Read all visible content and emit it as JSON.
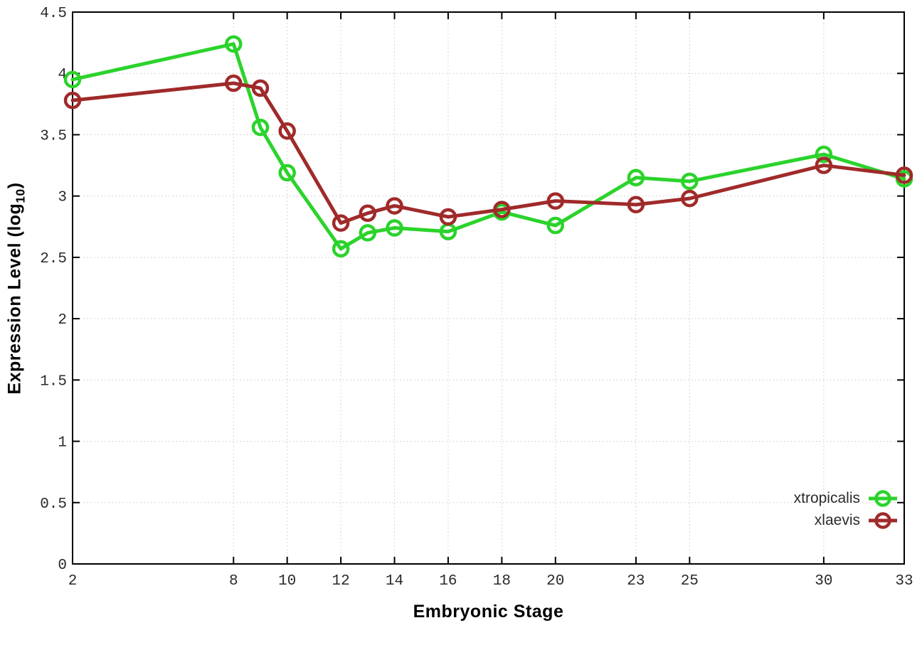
{
  "figure": {
    "xlabel": "Embryonic Stage",
    "ylabel_prefix": "Expression Level (log",
    "ylabel_subscript": "10",
    "ylabel_suffix": ")"
  },
  "legend": {
    "position": "bottom-right",
    "entries": [
      {
        "label": "xtropicalis",
        "color": "#2bd32b"
      },
      {
        "label": "xlaevis",
        "color": "#a02a2a"
      }
    ]
  },
  "chart_data": {
    "type": "line",
    "title": "",
    "xlabel": "Embryonic Stage",
    "ylabel": "Expression Level (log10)",
    "x": [
      2,
      8,
      9,
      10,
      12,
      13,
      14,
      16,
      18,
      20,
      23,
      25,
      30,
      33
    ],
    "series": [
      {
        "name": "xtropicalis",
        "color": "#2bd32b",
        "values": [
          3.95,
          4.24,
          3.56,
          3.19,
          2.57,
          2.7,
          2.74,
          2.71,
          2.87,
          2.76,
          3.15,
          3.12,
          3.34,
          3.14
        ]
      },
      {
        "name": "xlaevis",
        "color": "#a02a2a",
        "values": [
          3.78,
          3.92,
          3.88,
          3.53,
          2.78,
          2.86,
          2.92,
          2.83,
          2.89,
          2.96,
          2.93,
          2.98,
          3.25,
          3.17
        ]
      }
    ],
    "xticks": [
      2,
      8,
      10,
      12,
      14,
      16,
      18,
      20,
      23,
      25,
      30,
      33
    ],
    "yticks": [
      0,
      0.5,
      1,
      1.5,
      2,
      2.5,
      3,
      3.5,
      4,
      4.5
    ],
    "xlim": [
      2,
      33
    ],
    "ylim": [
      0,
      4.5
    ],
    "grid": true,
    "marker": "open-circle",
    "legend_position": "bottom-right",
    "grid_color": "#c8c8c8",
    "axis_color": "#000000",
    "tick_label_color": "#2a2a2a"
  }
}
